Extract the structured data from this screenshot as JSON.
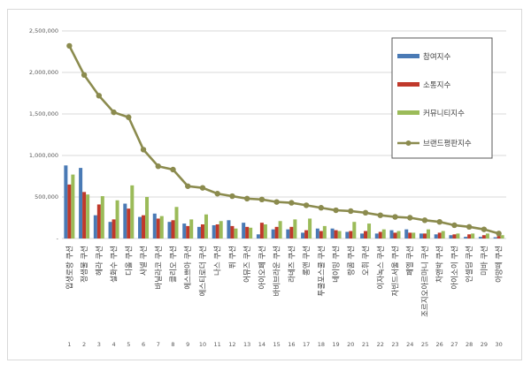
{
  "chart_data": {
    "type": "bar",
    "ylim": [
      0,
      2500000
    ],
    "yticks": [
      0,
      500000,
      1000000,
      1500000,
      2000000,
      2500000
    ],
    "ytick_labels": [
      "-",
      "500,000",
      "1,000,000",
      "1,500,000",
      "2,000,000",
      "2,500,000"
    ],
    "grid": true,
    "legend_position": "right",
    "categories": [
      "입생로랑 쿠션",
      "정샘물 쿠션",
      "헤라 쿠션",
      "설화수 쿠션",
      "디올 쿠션",
      "샤넬 쿠션",
      "바닐라코 쿠션",
      "클리오 쿠션",
      "에스쁘아 쿠션",
      "에스티로더 쿠션",
      "나스 쿠션",
      "퓌 쿠션",
      "어뮤즈 쿠션",
      "아이오페 쿠션",
      "바비브라운 쿠션",
      "라네즈 쿠션",
      "롬앤 쿠션",
      "투쿨포스쿨 쿠션",
      "네이밍 쿠션",
      "랑콤 쿠션",
      "오휘 쿠션",
      "이자녹스 쿠션",
      "자빈드서울 쿠션",
      "페엘 쿠션",
      "조르지오아르마니 쿠션",
      "차앤박 쿠션",
      "아이소이 쿠션",
      "인셀덤 쿠션",
      "미바 쿠션",
      "아망떼 쿠션"
    ],
    "index_labels": [
      "1",
      "2",
      "3",
      "4",
      "5",
      "6",
      "7",
      "8",
      "9",
      "10",
      "11",
      "12",
      "13",
      "14",
      "15",
      "16",
      "17",
      "18",
      "19",
      "20",
      "21",
      "22",
      "23",
      "24",
      "25",
      "26",
      "27",
      "28",
      "29",
      "30"
    ],
    "series": [
      {
        "name": "참여지수",
        "kind": "bar",
        "color": "#4a7ab5",
        "values": [
          880000,
          850000,
          280000,
          200000,
          420000,
          260000,
          300000,
          200000,
          180000,
          140000,
          160000,
          220000,
          190000,
          50000,
          110000,
          110000,
          70000,
          120000,
          120000,
          80000,
          60000,
          60000,
          100000,
          110000,
          60000,
          50000,
          40000,
          20000,
          20000,
          15000
        ]
      },
      {
        "name": "소통지수",
        "kind": "bar",
        "color": "#c0392b",
        "values": [
          650000,
          560000,
          410000,
          230000,
          360000,
          280000,
          240000,
          220000,
          150000,
          170000,
          170000,
          150000,
          140000,
          190000,
          140000,
          140000,
          100000,
          90000,
          100000,
          90000,
          90000,
          80000,
          70000,
          70000,
          60000,
          70000,
          50000,
          50000,
          40000,
          30000
        ]
      },
      {
        "name": "커뮤니티지수",
        "kind": "bar",
        "color": "#9bbb59",
        "values": [
          770000,
          530000,
          510000,
          460000,
          640000,
          500000,
          270000,
          380000,
          230000,
          290000,
          210000,
          120000,
          130000,
          170000,
          210000,
          230000,
          240000,
          150000,
          90000,
          200000,
          180000,
          110000,
          90000,
          70000,
          110000,
          90000,
          60000,
          60000,
          60000,
          40000
        ]
      },
      {
        "name": "브랜드평판지수",
        "kind": "line",
        "color": "#8b8b4e",
        "values": [
          2320000,
          1970000,
          1720000,
          1520000,
          1460000,
          1070000,
          870000,
          830000,
          630000,
          610000,
          540000,
          510000,
          480000,
          470000,
          440000,
          430000,
          400000,
          370000,
          340000,
          330000,
          310000,
          280000,
          260000,
          250000,
          220000,
          200000,
          160000,
          140000,
          110000,
          60000
        ]
      }
    ]
  }
}
